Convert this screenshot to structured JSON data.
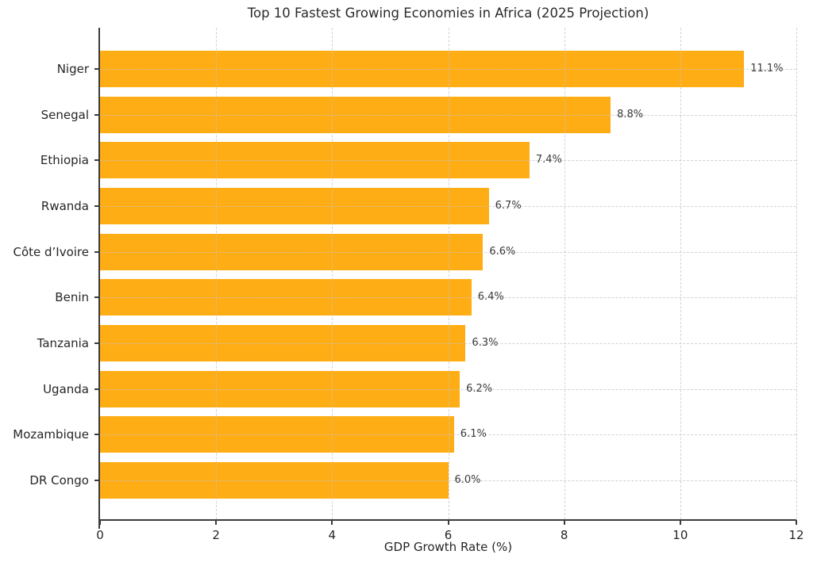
{
  "chart_data": {
    "type": "bar",
    "orientation": "horizontal",
    "title": "Top 10 Fastest Growing Economies in Africa (2025 Projection)",
    "xlabel": "GDP Growth Rate (%)",
    "ylabel": "",
    "categories": [
      "Niger",
      "Senegal",
      "Ethiopia",
      "Rwanda",
      "Côte d’Ivoire",
      "Benin",
      "Tanzania",
      "Uganda",
      "Mozambique",
      "DR Congo"
    ],
    "values": [
      11.1,
      8.8,
      7.4,
      6.7,
      6.6,
      6.4,
      6.3,
      6.2,
      6.1,
      6.0
    ],
    "value_labels": [
      "11.1%",
      "8.8%",
      "7.4%",
      "6.7%",
      "6.6%",
      "6.4%",
      "6.3%",
      "6.2%",
      "6.1%",
      "6.0%"
    ],
    "xlim": [
      0,
      12
    ],
    "xticks": [
      0,
      2,
      4,
      6,
      8,
      10,
      12
    ],
    "grid": "both, dashed",
    "legend": "none",
    "colors": {
      "bar": "#FFAD14",
      "grid": "#c4c4c4",
      "spine": "#3b3b3b",
      "text": "#262626",
      "value_text": "#3a3a3a"
    }
  }
}
